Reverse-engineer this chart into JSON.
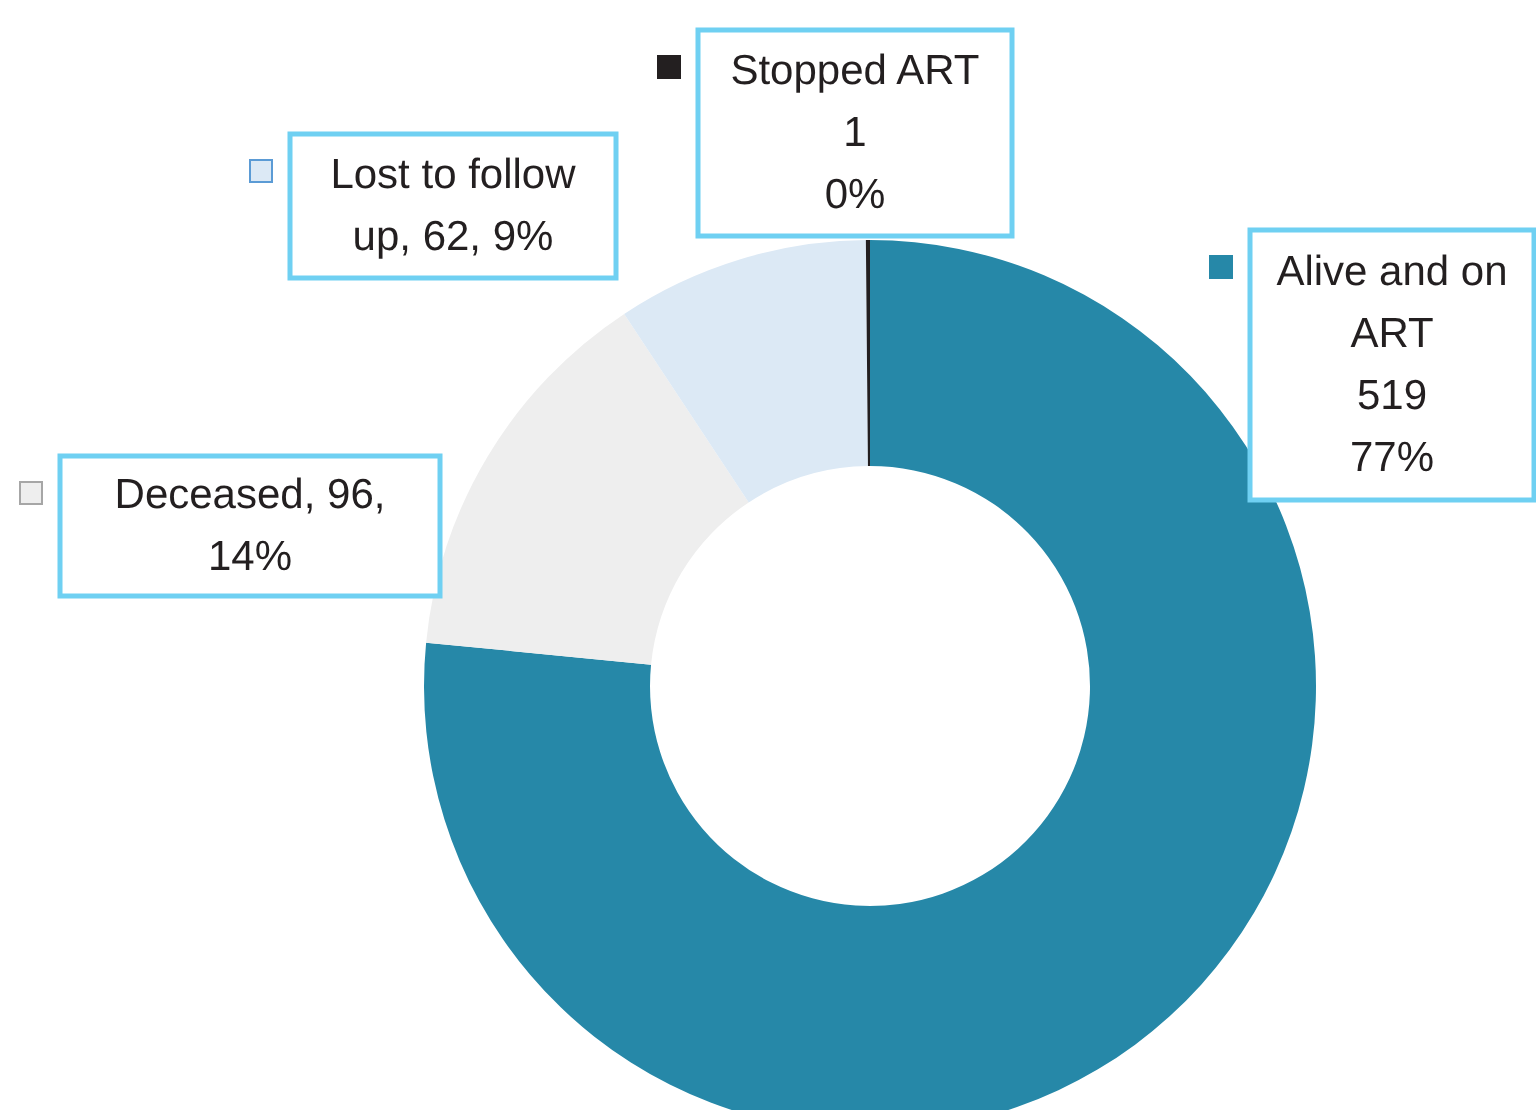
{
  "chart_data": {
    "type": "donut",
    "categories": [
      "Alive and on ART",
      "Deceased",
      "Lost to follow up",
      "Stopped ART"
    ],
    "values": [
      519,
      96,
      62,
      1
    ],
    "colors": [
      "#2688a8",
      "#eeeeee",
      "#dce9f5",
      "#231f20"
    ],
    "value_labels": [
      "519\n77%",
      "96, 14%",
      "62, 9%",
      "1\n0%"
    ],
    "legend": "top"
  }
}
